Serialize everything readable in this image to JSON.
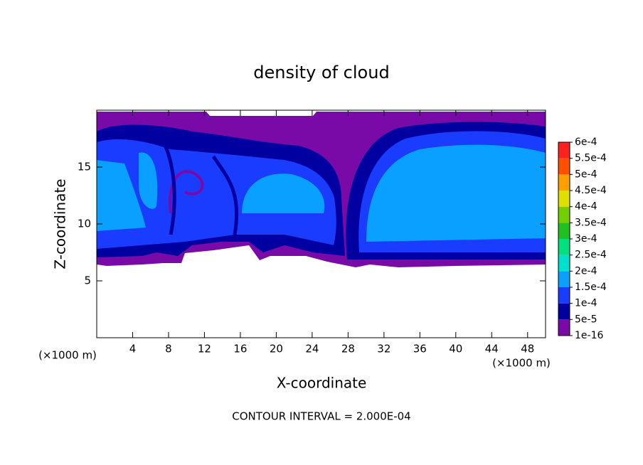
{
  "chart_data": {
    "type": "contour",
    "title": "density of cloud",
    "x_label": "X-coordinate",
    "y_label": "Z-coordinate",
    "x_unit": "(×1000 m)",
    "y_unit": "(×1000 m)",
    "xlim": [
      0,
      50
    ],
    "xticks": [
      4,
      8,
      12,
      16,
      20,
      24,
      28,
      32,
      36,
      40,
      44,
      48
    ],
    "ylim": [
      0,
      20
    ],
    "yticks": [
      5,
      10,
      15
    ],
    "footer": "CONTOUR INTERVAL = 2.000E-04",
    "colorbar": {
      "lim": [
        1e-16,
        0.0006
      ],
      "ticks": [
        {
          "value": 1e-16,
          "label": "1e-16"
        },
        {
          "value": 5e-05,
          "label": "5e-5"
        },
        {
          "value": 0.0001,
          "label": "1e-4"
        },
        {
          "value": 0.00015,
          "label": "1.5e-4"
        },
        {
          "value": 0.0002,
          "label": "2e-4"
        },
        {
          "value": 0.00025,
          "label": "2.5e-4"
        },
        {
          "value": 0.0003,
          "label": "3e-4"
        },
        {
          "value": 0.00035,
          "label": "3.5e-4"
        },
        {
          "value": 0.0004,
          "label": "4e-4"
        },
        {
          "value": 0.00045,
          "label": "4.5e-4"
        },
        {
          "value": 0.0005,
          "label": "5e-4"
        },
        {
          "value": 0.00055,
          "label": "5.5e-4"
        },
        {
          "value": 0.0006,
          "label": "6e-4"
        }
      ],
      "colors": [
        "#7a0aa8",
        "#0000a0",
        "#1a3cff",
        "#0aa0ff",
        "#00e0d0",
        "#00e080",
        "#20c020",
        "#70d000",
        "#e0e000",
        "#ffa000",
        "#ff5000",
        "#ff2020"
      ]
    }
  }
}
